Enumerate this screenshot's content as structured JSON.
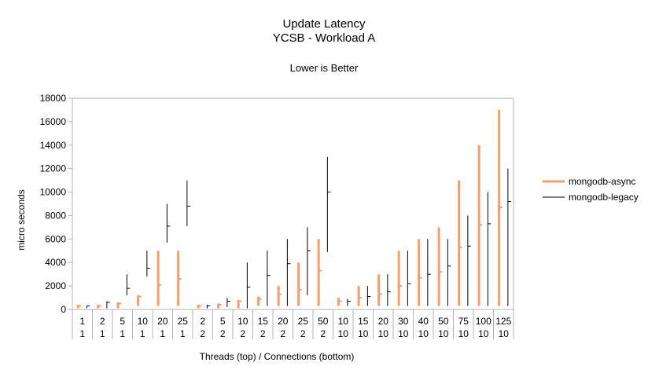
{
  "chart_data": {
    "type": "stock",
    "title": "Update Latency",
    "subtitle": "YCSB - Workload A",
    "note": "Lower is Better",
    "xlabel": "Threads (top)  / Connections (bottom)",
    "ylabel": "micro seconds",
    "ylim": [
      0,
      18000
    ],
    "yticks": [
      0,
      2000,
      4000,
      6000,
      8000,
      10000,
      12000,
      14000,
      16000,
      18000
    ],
    "grid": false,
    "legend_position": "right",
    "categories": [
      {
        "threads": "1",
        "connections": "1"
      },
      {
        "threads": "2",
        "connections": "1"
      },
      {
        "threads": "5",
        "connections": "1"
      },
      {
        "threads": "10",
        "connections": "1"
      },
      {
        "threads": "20",
        "connections": "1"
      },
      {
        "threads": "25",
        "connections": "1"
      },
      {
        "threads": "2",
        "connections": "2"
      },
      {
        "threads": "5",
        "connections": "2"
      },
      {
        "threads": "10",
        "connections": "2"
      },
      {
        "threads": "15",
        "connections": "2"
      },
      {
        "threads": "20",
        "connections": "2"
      },
      {
        "threads": "25",
        "connections": "2"
      },
      {
        "threads": "50",
        "connections": "2"
      },
      {
        "threads": "10",
        "connections": "10"
      },
      {
        "threads": "15",
        "connections": "10"
      },
      {
        "threads": "20",
        "connections": "10"
      },
      {
        "threads": "30",
        "connections": "10"
      },
      {
        "threads": "40",
        "connections": "10"
      },
      {
        "threads": "50",
        "connections": "10"
      },
      {
        "threads": "75",
        "connections": "10"
      },
      {
        "threads": "100",
        "connections": "10"
      },
      {
        "threads": "125",
        "connections": "10"
      }
    ],
    "series": [
      {
        "name": "mongodb-async",
        "color": "#f79d6b",
        "low": [
          100,
          100,
          100,
          300,
          300,
          300,
          100,
          100,
          100,
          300,
          300,
          300,
          300,
          300,
          300,
          300,
          300,
          300,
          300,
          300,
          300,
          300
        ],
        "high": [
          400,
          400,
          600,
          1200,
          5000,
          5000,
          400,
          500,
          800,
          1100,
          2000,
          4000,
          6000,
          1000,
          2000,
          3000,
          5000,
          6000,
          7000,
          11000,
          14000,
          17000
        ],
        "mid": [
          300,
          300,
          500,
          1100,
          2100,
          2600,
          300,
          400,
          700,
          900,
          1300,
          1700,
          3300,
          700,
          1000,
          1300,
          2000,
          2700,
          3200,
          5300,
          7200,
          8700
        ]
      },
      {
        "name": "mongodb-legacy",
        "color": "#000000",
        "low": [
          100,
          100,
          1200,
          2800,
          5700,
          7100,
          100,
          200,
          100,
          300,
          300,
          1200,
          4900,
          300,
          300,
          300,
          300,
          300,
          300,
          300,
          300,
          300
        ],
        "high": [
          300,
          700,
          3000,
          5000,
          9000,
          11000,
          400,
          1000,
          4000,
          5000,
          6000,
          7000,
          13000,
          900,
          2000,
          3000,
          5000,
          6000,
          6000,
          8000,
          10000,
          12000
        ],
        "mid": [
          300,
          600,
          1800,
          3500,
          7100,
          8800,
          300,
          700,
          1900,
          2900,
          3900,
          5000,
          10000,
          700,
          1100,
          1500,
          2200,
          3000,
          3700,
          5400,
          7300,
          9200
        ]
      }
    ]
  }
}
